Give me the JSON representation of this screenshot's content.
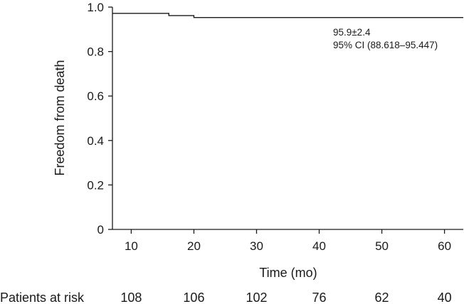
{
  "chart_data": {
    "type": "line",
    "subtype": "kaplan-meier-step",
    "title": "",
    "xlabel": "Time (mo)",
    "ylabel": "Freedom from death",
    "xlim": [
      7,
      63
    ],
    "ylim": [
      0,
      1.0
    ],
    "xticks": [
      10,
      20,
      30,
      40,
      50,
      60
    ],
    "yticks": [
      0,
      0.2,
      0.4,
      0.6,
      0.8,
      1.0
    ],
    "ytick_labels": [
      "0",
      "0.2",
      "0.4",
      "0.6",
      "0.8",
      "1.0"
    ],
    "grid": false,
    "series": [
      {
        "steps": [
          {
            "x": 7,
            "y": 0.972
          },
          {
            "x": 16,
            "y": 0.962
          },
          {
            "x": 20,
            "y": 0.953
          },
          {
            "x": 63,
            "y": 0.953
          }
        ]
      }
    ],
    "annotations": [
      "95.9±2.4",
      "95% CI (88.618–95.447)"
    ],
    "risk_table": {
      "label": "Patients at risk",
      "values": [
        "108",
        "106",
        "102",
        "76",
        "62",
        "40"
      ]
    }
  }
}
